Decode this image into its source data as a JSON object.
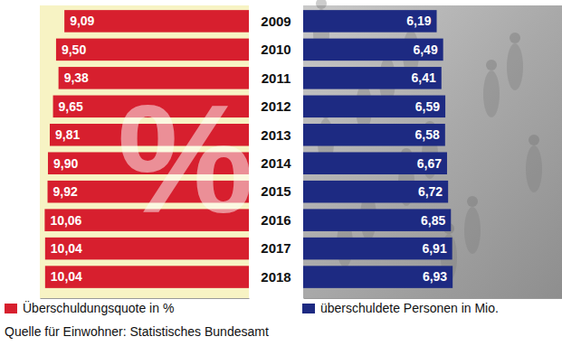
{
  "chart_data": [
    {
      "type": "bar",
      "orientation": "horizontal",
      "categories": [
        "2009",
        "2010",
        "2011",
        "2012",
        "2013",
        "2014",
        "2015",
        "2016",
        "2017",
        "2018"
      ],
      "series": [
        {
          "name": "Überschuldungsquote in %",
          "color": "#d71f2e",
          "values": [
            9.09,
            9.5,
            9.38,
            9.65,
            9.81,
            9.9,
            9.92,
            10.06,
            10.04,
            10.04
          ],
          "value_labels": [
            "9,09",
            "9,50",
            "9,38",
            "9,65",
            "9,81",
            "9,90",
            "9,92",
            "10,06",
            "10,04",
            "10,04"
          ]
        }
      ],
      "xlim": [
        0,
        10.3
      ],
      "data_labels": true,
      "tick_labels": "y",
      "legend": "bottom",
      "annotations": [
        "%",
        "Quelle für Einwohner: Statistisches Bundesamt"
      ]
    },
    {
      "type": "bar",
      "orientation": "horizontal",
      "categories": [
        "2009",
        "2010",
        "2011",
        "2012",
        "2013",
        "2014",
        "2015",
        "2016",
        "2017",
        "2018"
      ],
      "series": [
        {
          "name": "überschuldete Personen in Mio.",
          "color": "#1d2a82",
          "values": [
            6.19,
            6.49,
            6.41,
            6.59,
            6.58,
            6.67,
            6.72,
            6.85,
            6.91,
            6.93
          ],
          "value_labels": [
            "6,19",
            "6,49",
            "6,41",
            "6,59",
            "6,58",
            "6,67",
            "6,72",
            "6,85",
            "6,91",
            "6,93"
          ]
        }
      ],
      "xlim": [
        0,
        12
      ],
      "data_labels": true,
      "tick_labels": false,
      "legend": "bottom"
    }
  ]
}
